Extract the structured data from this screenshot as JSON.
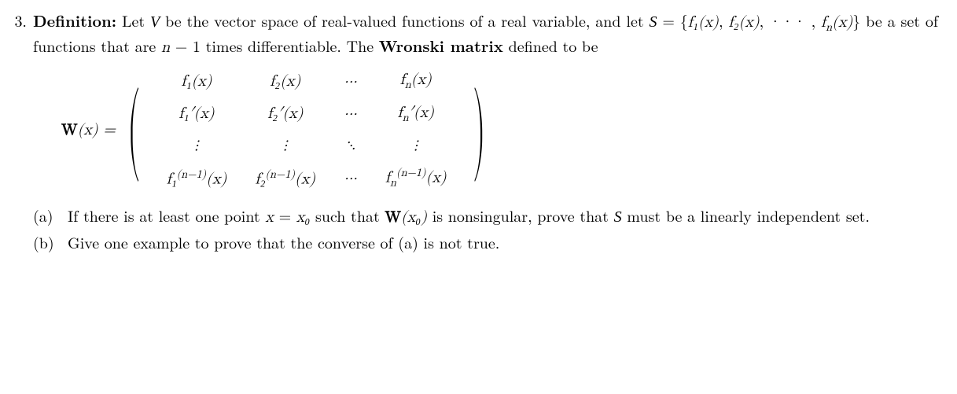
{
  "problem_number": "3.",
  "definition_label": "Definition:",
  "intro_text_1": "Let ",
  "V_sym": "V",
  "intro_text_2": " be the vector space of real-valued functions of a real variable, and let ",
  "S_sym": "S",
  "eq1": " = {",
  "f1x": "f₁(x)",
  "comma1": ", ",
  "f2x": "f₂(x)",
  "comma2": ", ··· , ",
  "fnx": "f",
  "fn_sub": "n",
  "fn_x": "(x)",
  "close_set": "} ",
  "intro_text_3": "be a set of functions that are ",
  "n_sym": "n",
  "minus1": " − 1",
  "intro_text_4": " times differentiable. The ",
  "wronski_label": "Wronski matrix",
  "intro_text_5": " defined to be",
  "Wx_lhs_W": "W",
  "Wx_lhs_x": "(x) = ",
  "mat": {
    "r0c0": "f₁(x)",
    "r0c1": "f₂(x)",
    "r0c2": "···",
    "r0c3_a": "f",
    "r0c3_sub": "n",
    "r0c3_b": "(x)",
    "r1c0": "f₁′(x)",
    "r1c1": "f₂′(x)",
    "r1c2": "···",
    "r1c3_a": "f",
    "r1c3_sub": "n",
    "r1c3_prime": "′",
    "r1c3_b": "(x)",
    "r2c0": "⋮",
    "r2c1": "⋮",
    "r2c2": "⋱",
    "r2c3": "⋮",
    "r3c0_a": "f₁",
    "r3c0_sup": "(n−1)",
    "r3c0_b": "(x)",
    "r3c1_a": "f₂",
    "r3c1_sup": "(n−1)",
    "r3c1_b": "(x)",
    "r3c2": "···",
    "r3c3_a": "f",
    "r3c3_sub": "n",
    "r3c3_sup": "(n−1)",
    "r3c3_b": "(x)"
  },
  "part_a_label": "(a)",
  "part_a_1": "If there is at least one point ",
  "part_a_x": "x",
  "part_a_eq": " = ",
  "part_a_x0": "x₀",
  "part_a_2": " such that ",
  "part_a_W": "W",
  "part_a_Wx0": "(x₀)",
  "part_a_3": " is nonsingular, prove that ",
  "part_a_S": "S",
  "part_a_4": " must be a linearly independent set.",
  "part_b_label": "(b)",
  "part_b_text": "Give one example to prove that the converse of (a) is not true."
}
